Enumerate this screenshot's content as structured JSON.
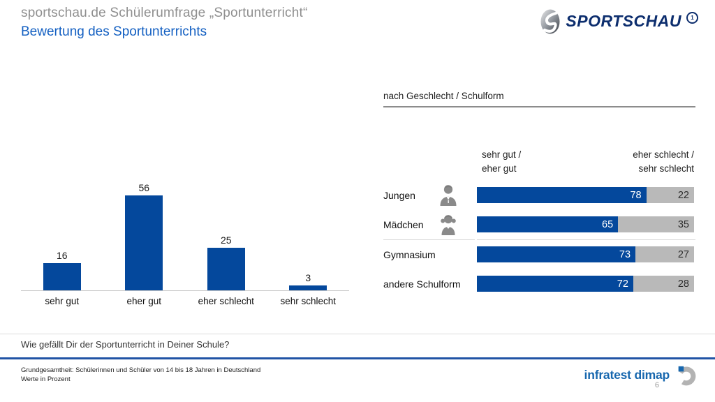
{
  "header": {
    "title": "sportschau.de Schülerumfrage „Sportunterricht“",
    "subtitle": "Bewertung des Sportunterrichts",
    "logo_text": "SPORTSCHAU",
    "logo_mark": "1"
  },
  "chart_data": [
    {
      "type": "bar",
      "title": "Bewertung des Sportunterrichts",
      "categories": [
        "sehr gut",
        "eher gut",
        "eher schlecht",
        "sehr schlecht"
      ],
      "values": [
        16,
        56,
        25,
        3
      ],
      "xlabel": "",
      "ylabel": "Werte in Prozent",
      "ylim": [
        0,
        60
      ],
      "grid": false,
      "bar_color": "#04489c"
    },
    {
      "type": "bar",
      "subtype": "horizontal-stacked-100",
      "title": "nach Geschlecht / Schulform",
      "categories": [
        "Jungen",
        "Mädchen",
        "Gymnasium",
        "andere Schulform"
      ],
      "series": [
        {
          "name": "sehr gut / eher gut",
          "values": [
            78,
            65,
            73,
            72
          ],
          "color": "#04489c"
        },
        {
          "name": "eher schlecht / sehr schlecht",
          "values": [
            22,
            35,
            27,
            28
          ],
          "color": "#b9b9b9"
        }
      ],
      "xlim": [
        0,
        100
      ],
      "legend_position": "top",
      "value_labels": "inside-end"
    }
  ],
  "right_panel": {
    "section_title": "nach Geschlecht / Schulform",
    "column_headers": {
      "left": [
        "sehr gut /",
        "eher gut"
      ],
      "right": [
        "eher schlecht /",
        "sehr schlecht"
      ]
    },
    "icons": [
      "boy-icon",
      "girl-icon",
      null,
      null
    ],
    "group_break_after_index": 1
  },
  "question": "Wie gefällt Dir der Sportunterricht in Deiner Schule?",
  "footer": {
    "line1": "Grundgesamtheit: Schülerinnen und Schüler von 14 bis 18 Jahren in Deutschland",
    "line2": "Werte in Prozent",
    "brand": "infratest dimap",
    "page": "6"
  },
  "colors": {
    "bar_blue": "#04489c",
    "bar_gray": "#b9b9b9",
    "title_gray": "#8f8f8f",
    "subtitle_blue": "#1460c2",
    "sportschau_navy": "#0d2e6e",
    "footer_line_blue": "#2154a5",
    "infratest_blue": "#1767ae",
    "icon_gray": "#8a8a8a"
  }
}
